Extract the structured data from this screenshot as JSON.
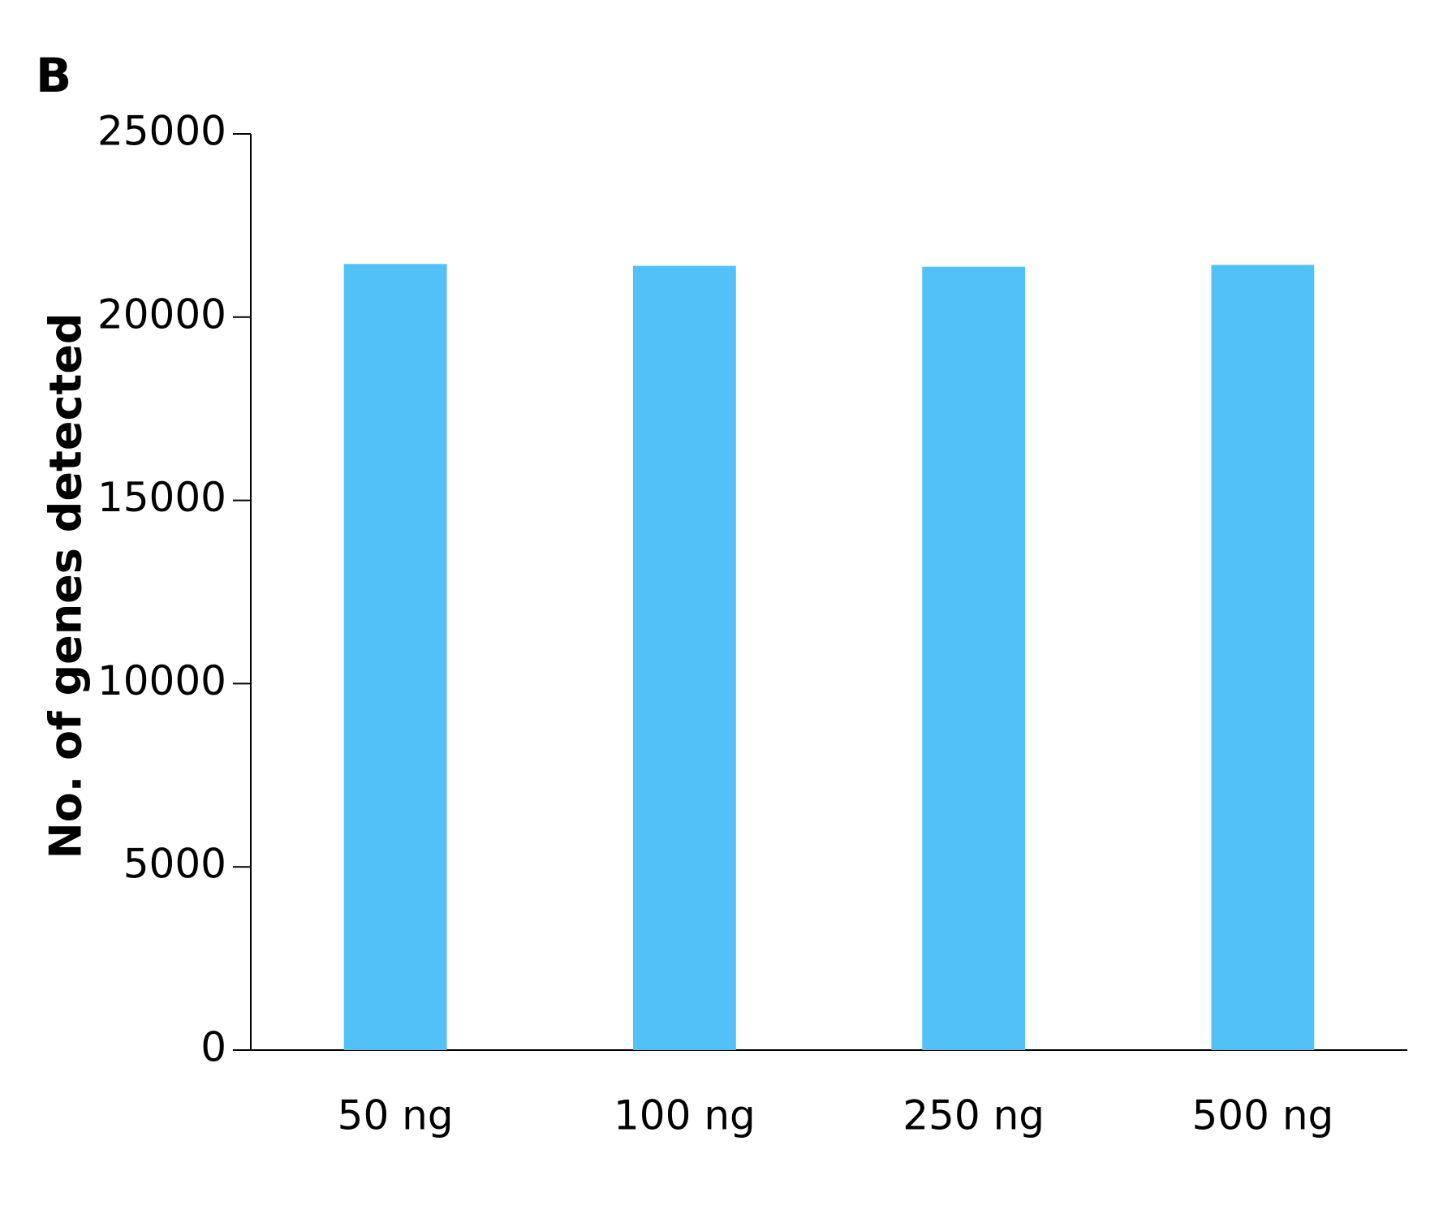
{
  "panel_label": "B",
  "chart_data": {
    "type": "bar",
    "y_label": "No. of genes detected",
    "categories": [
      "50 ng",
      "100 ng",
      "250 ng",
      "500 ng"
    ],
    "values": [
      21450,
      21400,
      21375,
      21425
    ],
    "color": "#52c1f7",
    "ylim": [
      0,
      25000
    ],
    "yticks": [
      0,
      5000,
      10000,
      15000,
      20000,
      25000
    ],
    "grid": false
  }
}
